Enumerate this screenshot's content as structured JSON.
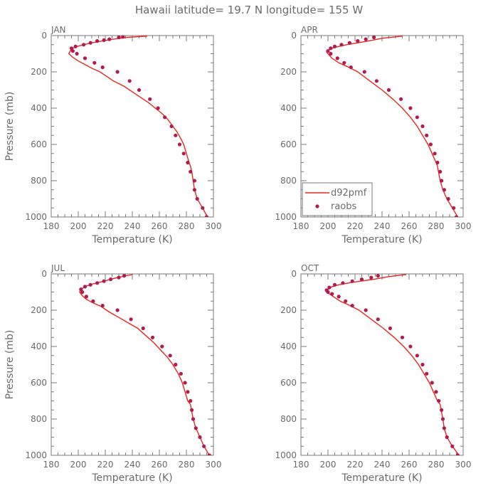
{
  "title": "Hawaii  latitude= 19.7 N longitude= 155 W",
  "legend": {
    "placement": "inside APR panel, lower-left",
    "line_label": "d92pmf",
    "marker_label": "raobs"
  },
  "colors": {
    "model_line": "#e8261f",
    "observation_marker": "#b21b4f",
    "axes": "#7a7a7a",
    "text": "#6b6b6b"
  },
  "chart_data": [
    {
      "type": "line",
      "panel": "JAN",
      "xlabel": "Temperature (K)",
      "ylabel": "Pressure (mb)",
      "xlim": [
        180,
        300
      ],
      "ylim": [
        1000,
        0
      ],
      "y_axis_inverted": true,
      "xticks": [
        180,
        200,
        220,
        240,
        260,
        280,
        300
      ],
      "yticks": [
        0,
        200,
        400,
        600,
        800,
        1000
      ],
      "series": [
        {
          "name": "d92pmf",
          "kind": "line",
          "x": [
            295.5,
            292,
            288,
            286,
            285,
            284,
            283,
            282,
            280,
            278,
            276,
            273,
            270,
            266,
            262,
            257,
            252,
            246,
            240,
            234,
            226,
            220,
            216,
            210,
            205,
            200,
            196,
            193,
            194,
            196,
            199,
            204,
            210,
            218,
            226,
            236,
            251
          ],
          "y": [
            1000,
            950,
            900,
            850,
            800,
            750,
            720,
            700,
            650,
            600,
            570,
            530,
            500,
            460,
            430,
            400,
            370,
            340,
            310,
            280,
            250,
            220,
            200,
            180,
            160,
            140,
            120,
            100,
            85,
            70,
            60,
            50,
            40,
            30,
            20,
            10,
            3
          ]
        },
        {
          "name": "raobs",
          "kind": "scatter",
          "x": [
            295,
            292,
            288,
            286,
            286,
            283,
            281,
            278,
            275,
            272,
            269,
            264,
            259,
            253,
            245,
            238,
            229,
            218,
            212,
            205,
            199,
            196,
            195,
            198,
            204,
            209,
            214,
            219,
            223,
            230,
            233
          ],
          "y": [
            1000,
            950,
            900,
            850,
            800,
            750,
            700,
            650,
            600,
            550,
            500,
            450,
            400,
            350,
            300,
            250,
            200,
            175,
            150,
            125,
            100,
            85,
            70,
            60,
            50,
            40,
            30,
            25,
            20,
            10,
            7
          ]
        }
      ]
    },
    {
      "type": "line",
      "panel": "APR",
      "xlabel": "Temperature (K)",
      "ylabel": "",
      "xlim": [
        180,
        300
      ],
      "ylim": [
        1000,
        0
      ],
      "y_axis_inverted": true,
      "xticks": [
        180,
        200,
        220,
        240,
        260,
        280,
        300
      ],
      "yticks": [
        0,
        200,
        400,
        600,
        800,
        1000
      ],
      "series": [
        {
          "name": "d92pmf",
          "kind": "line",
          "x": [
            296,
            292,
            288,
            285,
            283,
            282,
            281,
            280,
            277,
            274,
            270,
            266,
            261,
            255,
            248,
            240,
            231,
            222,
            214,
            208,
            203,
            200,
            199,
            200,
            203,
            208,
            214,
            222,
            230,
            240,
            255
          ],
          "y": [
            1000,
            950,
            900,
            850,
            800,
            760,
            720,
            700,
            650,
            600,
            550,
            500,
            450,
            400,
            350,
            300,
            250,
            200,
            170,
            150,
            125,
            100,
            90,
            80,
            70,
            60,
            50,
            40,
            30,
            15,
            3
          ]
        },
        {
          "name": "raobs",
          "kind": "scatter",
          "x": [
            295,
            293,
            289,
            286,
            284,
            283,
            281,
            279,
            276,
            273,
            270,
            266,
            261,
            254,
            245,
            236,
            227,
            217,
            212,
            207,
            202,
            200,
            202,
            205,
            210,
            216,
            222,
            228,
            234
          ],
          "y": [
            1000,
            950,
            900,
            850,
            800,
            750,
            700,
            650,
            600,
            550,
            500,
            450,
            400,
            350,
            300,
            250,
            200,
            175,
            150,
            125,
            100,
            85,
            70,
            60,
            50,
            40,
            30,
            20,
            10
          ]
        }
      ]
    },
    {
      "type": "line",
      "panel": "JUL",
      "xlabel": "Temperature (K)",
      "ylabel": "Pressure (mb)",
      "xlim": [
        180,
        300
      ],
      "ylim": [
        1000,
        0
      ],
      "y_axis_inverted": true,
      "xticks": [
        180,
        200,
        220,
        240,
        260,
        280,
        300
      ],
      "yticks": [
        0,
        200,
        400,
        600,
        800,
        1000
      ],
      "series": [
        {
          "name": "d92pmf",
          "kind": "line",
          "x": [
            297,
            293,
            290,
            287,
            285,
            284,
            283,
            281,
            279,
            277,
            274,
            270,
            266,
            261,
            256,
            250,
            244,
            237,
            230,
            223,
            217,
            211,
            206,
            203,
            201,
            202,
            205,
            211,
            219,
            229,
            240
          ],
          "y": [
            1000,
            950,
            900,
            850,
            800,
            760,
            720,
            700,
            650,
            600,
            550,
            500,
            460,
            420,
            380,
            340,
            300,
            270,
            240,
            210,
            180,
            160,
            140,
            120,
            100,
            85,
            70,
            55,
            40,
            20,
            4
          ]
        },
        {
          "name": "raobs",
          "kind": "scatter",
          "x": [
            297,
            293,
            290,
            287,
            285,
            284,
            283,
            281,
            279,
            276,
            272,
            268,
            262,
            255,
            248,
            239,
            229,
            218,
            211,
            206,
            203,
            202,
            205,
            209,
            214,
            219,
            224,
            230,
            234
          ],
          "y": [
            1000,
            950,
            900,
            850,
            800,
            750,
            700,
            650,
            600,
            550,
            500,
            450,
            400,
            350,
            300,
            250,
            200,
            175,
            150,
            125,
            100,
            85,
            70,
            60,
            50,
            40,
            30,
            20,
            10
          ]
        }
      ]
    },
    {
      "type": "line",
      "panel": "OCT",
      "xlabel": "Temperature (K)",
      "ylabel": "",
      "xlim": [
        180,
        300
      ],
      "ylim": [
        1000,
        0
      ],
      "y_axis_inverted": true,
      "xticks": [
        180,
        200,
        220,
        240,
        260,
        280,
        300
      ],
      "yticks": [
        0,
        200,
        400,
        600,
        800,
        1000
      ],
      "series": [
        {
          "name": "d92pmf",
          "kind": "line",
          "x": [
            297,
            292,
            288,
            286,
            285,
            284,
            283,
            281,
            278,
            275,
            271,
            267,
            262,
            256,
            249,
            241,
            232,
            223,
            215,
            209,
            204,
            201,
            199,
            200,
            203,
            208,
            215,
            224,
            234,
            245,
            258
          ],
          "y": [
            1000,
            950,
            900,
            850,
            800,
            760,
            720,
            700,
            650,
            600,
            550,
            500,
            450,
            400,
            350,
            300,
            250,
            200,
            170,
            150,
            125,
            110,
            100,
            85,
            70,
            60,
            50,
            40,
            30,
            15,
            3
          ]
        },
        {
          "name": "raobs",
          "kind": "scatter",
          "x": [
            296,
            292,
            288,
            286,
            285,
            284,
            282,
            280,
            277,
            273,
            270,
            266,
            261,
            255,
            246,
            237,
            228,
            218,
            213,
            208,
            203,
            200,
            199,
            201,
            205,
            211,
            218,
            225,
            232,
            237
          ],
          "y": [
            1000,
            950,
            900,
            850,
            800,
            750,
            700,
            650,
            600,
            550,
            500,
            450,
            400,
            350,
            300,
            250,
            200,
            175,
            150,
            125,
            110,
            100,
            90,
            75,
            60,
            50,
            40,
            30,
            20,
            10
          ]
        }
      ]
    }
  ]
}
